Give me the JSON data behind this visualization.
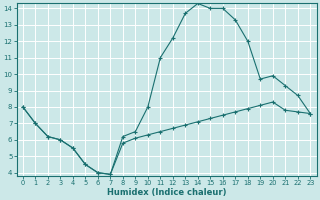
{
  "xlabel": "Humidex (Indice chaleur)",
  "background_color": "#cce8e8",
  "grid_color": "#b0d0d0",
  "line_color": "#1a7070",
  "x_min": 0,
  "x_max": 23,
  "y_min": 4,
  "y_max": 14,
  "curve1_x": [
    0,
    1,
    2,
    3,
    4,
    5,
    6,
    7,
    8,
    9,
    10,
    11,
    12,
    13,
    14,
    15,
    16,
    17,
    18,
    19,
    20,
    21,
    22,
    23
  ],
  "curve1_y": [
    8.0,
    7.0,
    6.2,
    6.0,
    5.5,
    4.5,
    4.0,
    3.9,
    5.8,
    6.1,
    6.3,
    6.5,
    6.7,
    6.9,
    7.1,
    7.3,
    7.5,
    7.7,
    7.9,
    8.1,
    8.3,
    7.8,
    7.7,
    7.6
  ],
  "curve2_x": [
    0,
    1,
    2,
    3,
    4,
    5,
    6,
    7,
    8,
    9,
    10,
    11,
    12,
    13,
    14,
    15,
    16,
    17,
    18,
    19,
    20,
    21,
    22,
    23
  ],
  "curve2_y": [
    8.0,
    7.0,
    6.2,
    6.0,
    5.5,
    4.5,
    4.0,
    3.9,
    6.2,
    6.5,
    8.0,
    11.0,
    12.2,
    13.7,
    14.3,
    14.0,
    14.0,
    13.3,
    12.0,
    9.7,
    9.9,
    9.3,
    8.7,
    7.6
  ]
}
